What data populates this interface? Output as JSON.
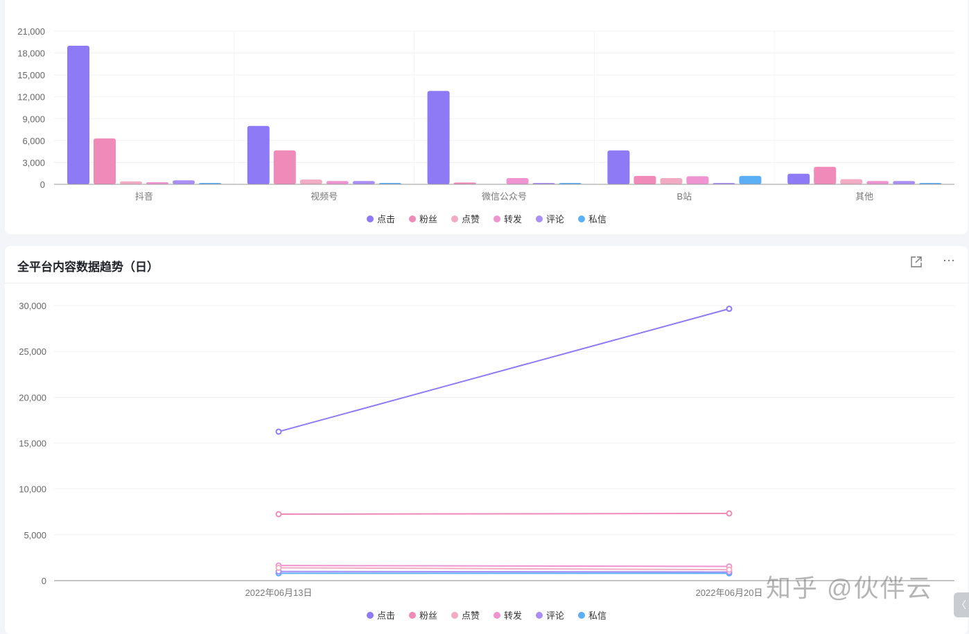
{
  "colors": {
    "点击": "#8f7af5",
    "粉丝": "#f08ab8",
    "点赞": "#f3aac3",
    "转发": "#ef94d0",
    "评论": "#a98ff5",
    "私信": "#5aaff5"
  },
  "chart_data": [
    {
      "type": "bar",
      "categories": [
        "抖音",
        "视频号",
        "微信公众号",
        "B站",
        "其他"
      ],
      "ylim": [
        0,
        21000
      ],
      "yticks": [
        "0",
        "3,000",
        "6,000",
        "9,000",
        "12,000",
        "15,000",
        "18,000",
        "21,000"
      ],
      "grid": true,
      "legend": "bottom",
      "series": [
        {
          "name": "点击",
          "values": [
            19000,
            8000,
            12800,
            4650,
            1450
          ]
        },
        {
          "name": "粉丝",
          "values": [
            6300,
            4650,
            250,
            1150,
            2400
          ]
        },
        {
          "name": "点赞",
          "values": [
            400,
            650,
            0,
            850,
            700
          ]
        },
        {
          "name": "转发",
          "values": [
            300,
            450,
            850,
            1100,
            450
          ]
        },
        {
          "name": "评论",
          "values": [
            550,
            450,
            100,
            100,
            450
          ]
        },
        {
          "name": "私信",
          "values": [
            100,
            80,
            80,
            1150,
            100
          ]
        }
      ]
    },
    {
      "type": "line",
      "title": "全平台内容数据趋势（日）",
      "x": [
        "2022年06月13日",
        "2022年06月20日"
      ],
      "ylim": [
        0,
        30000
      ],
      "yticks": [
        "0",
        "5,000",
        "10,000",
        "15,000",
        "20,000",
        "25,000",
        "30,000"
      ],
      "grid": true,
      "legend": "bottom",
      "series": [
        {
          "name": "点击",
          "values": [
            16250,
            29650
          ]
        },
        {
          "name": "粉丝",
          "values": [
            7250,
            7330
          ]
        },
        {
          "name": "点赞",
          "values": [
            1400,
            1200
          ]
        },
        {
          "name": "转发",
          "values": [
            1650,
            1550
          ]
        },
        {
          "name": "评论",
          "values": [
            1000,
            950
          ]
        },
        {
          "name": "私信",
          "values": [
            800,
            800
          ]
        }
      ]
    }
  ],
  "card2": {
    "title": "全平台内容数据趋势（日）",
    "open_icon": "external-link-icon",
    "more_icon": "more-icon",
    "more": "···",
    "open": "⧉"
  },
  "watermark": "知乎 @伙伴云",
  "collapse": "〈"
}
